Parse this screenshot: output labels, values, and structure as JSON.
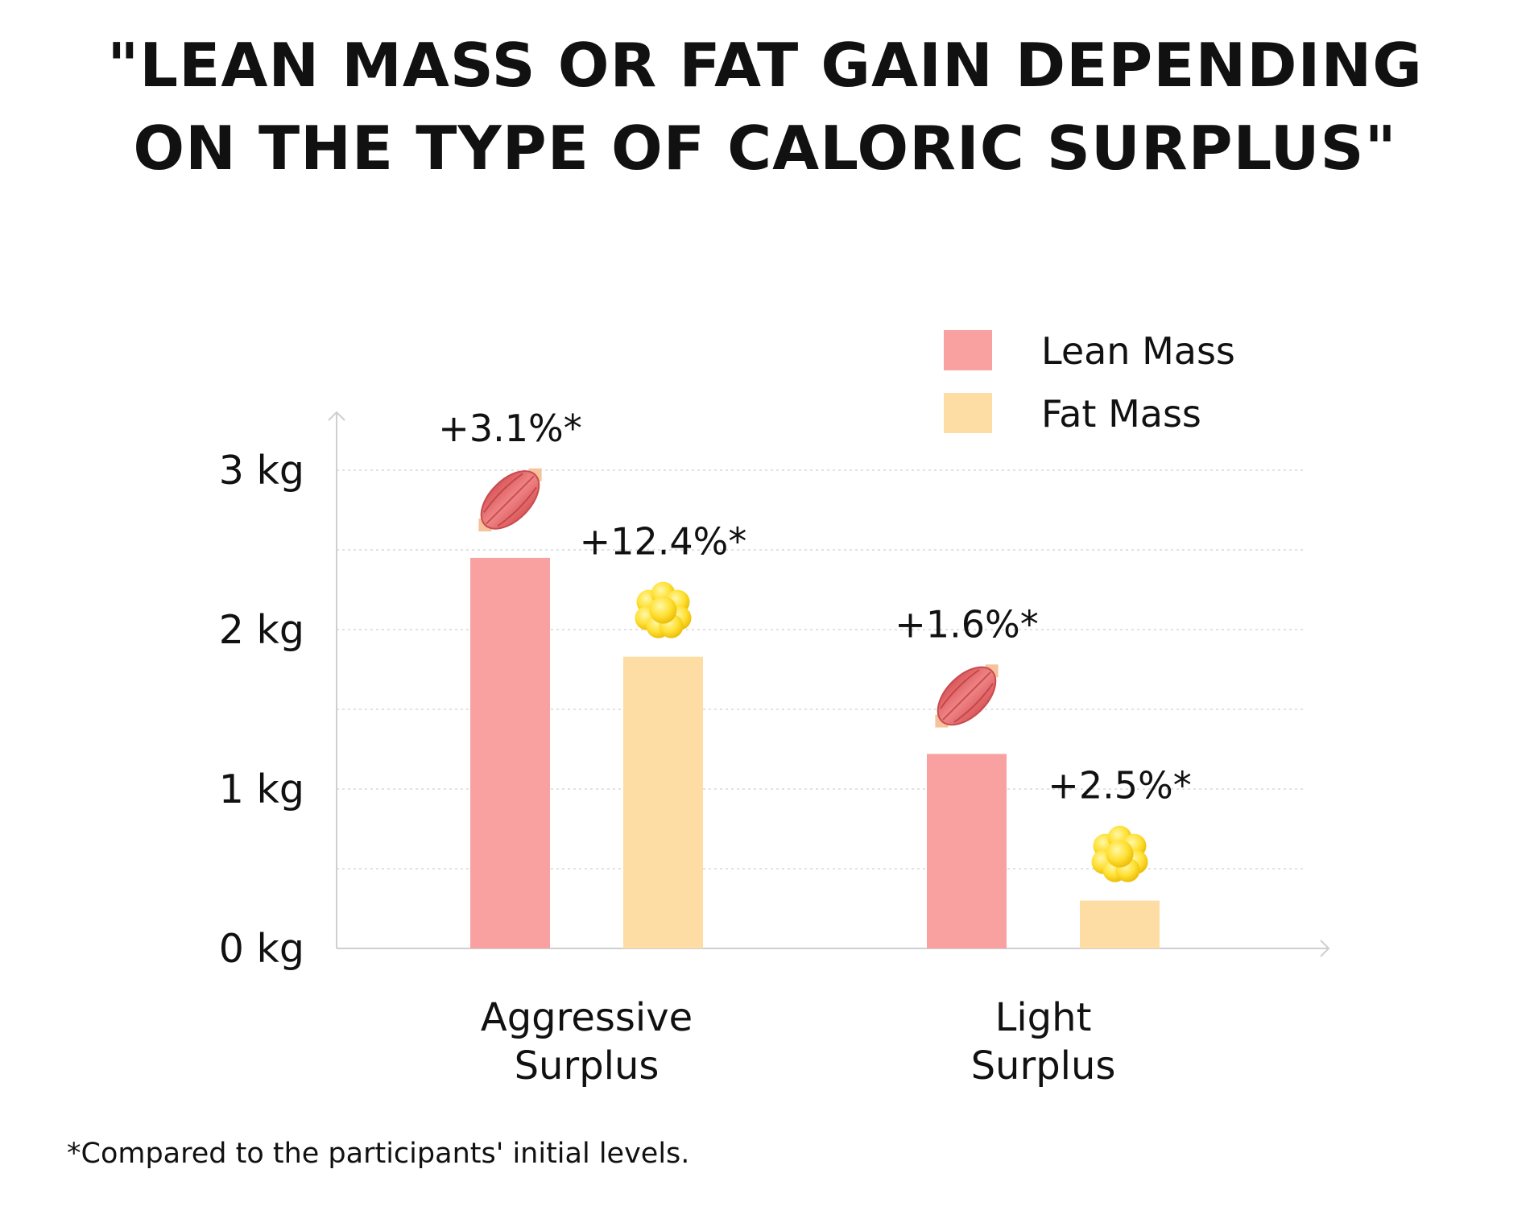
{
  "title": {
    "line1": "\"LEAN MASS OR FAT GAIN DEPENDING",
    "line2": "ON THE TYPE OF CALORIC SURPLUS\""
  },
  "footnote": "*Compared to the participants' initial levels.",
  "chart_data": {
    "type": "bar",
    "categories": [
      [
        "Aggressive",
        "Surplus"
      ],
      [
        "Light",
        "Surplus"
      ]
    ],
    "yticks": [
      "0 kg",
      "1 kg",
      "2 kg",
      "3 kg"
    ],
    "ylim": [
      0,
      3
    ],
    "grid": true,
    "legend_position": "top-right",
    "series": [
      {
        "name": "Lean Mass",
        "color": "#F9A1A1",
        "values": [
          2.45,
          1.22
        ],
        "labels": [
          "+3.1%*",
          "+1.6%*"
        ],
        "icon": "muscle-icon"
      },
      {
        "name": "Fat Mass",
        "color": "#FDDDA3",
        "values": [
          1.83,
          0.3
        ],
        "labels": [
          "+12.4%*",
          "+2.5%*"
        ],
        "icon": "fat-cell-icon"
      }
    ]
  }
}
